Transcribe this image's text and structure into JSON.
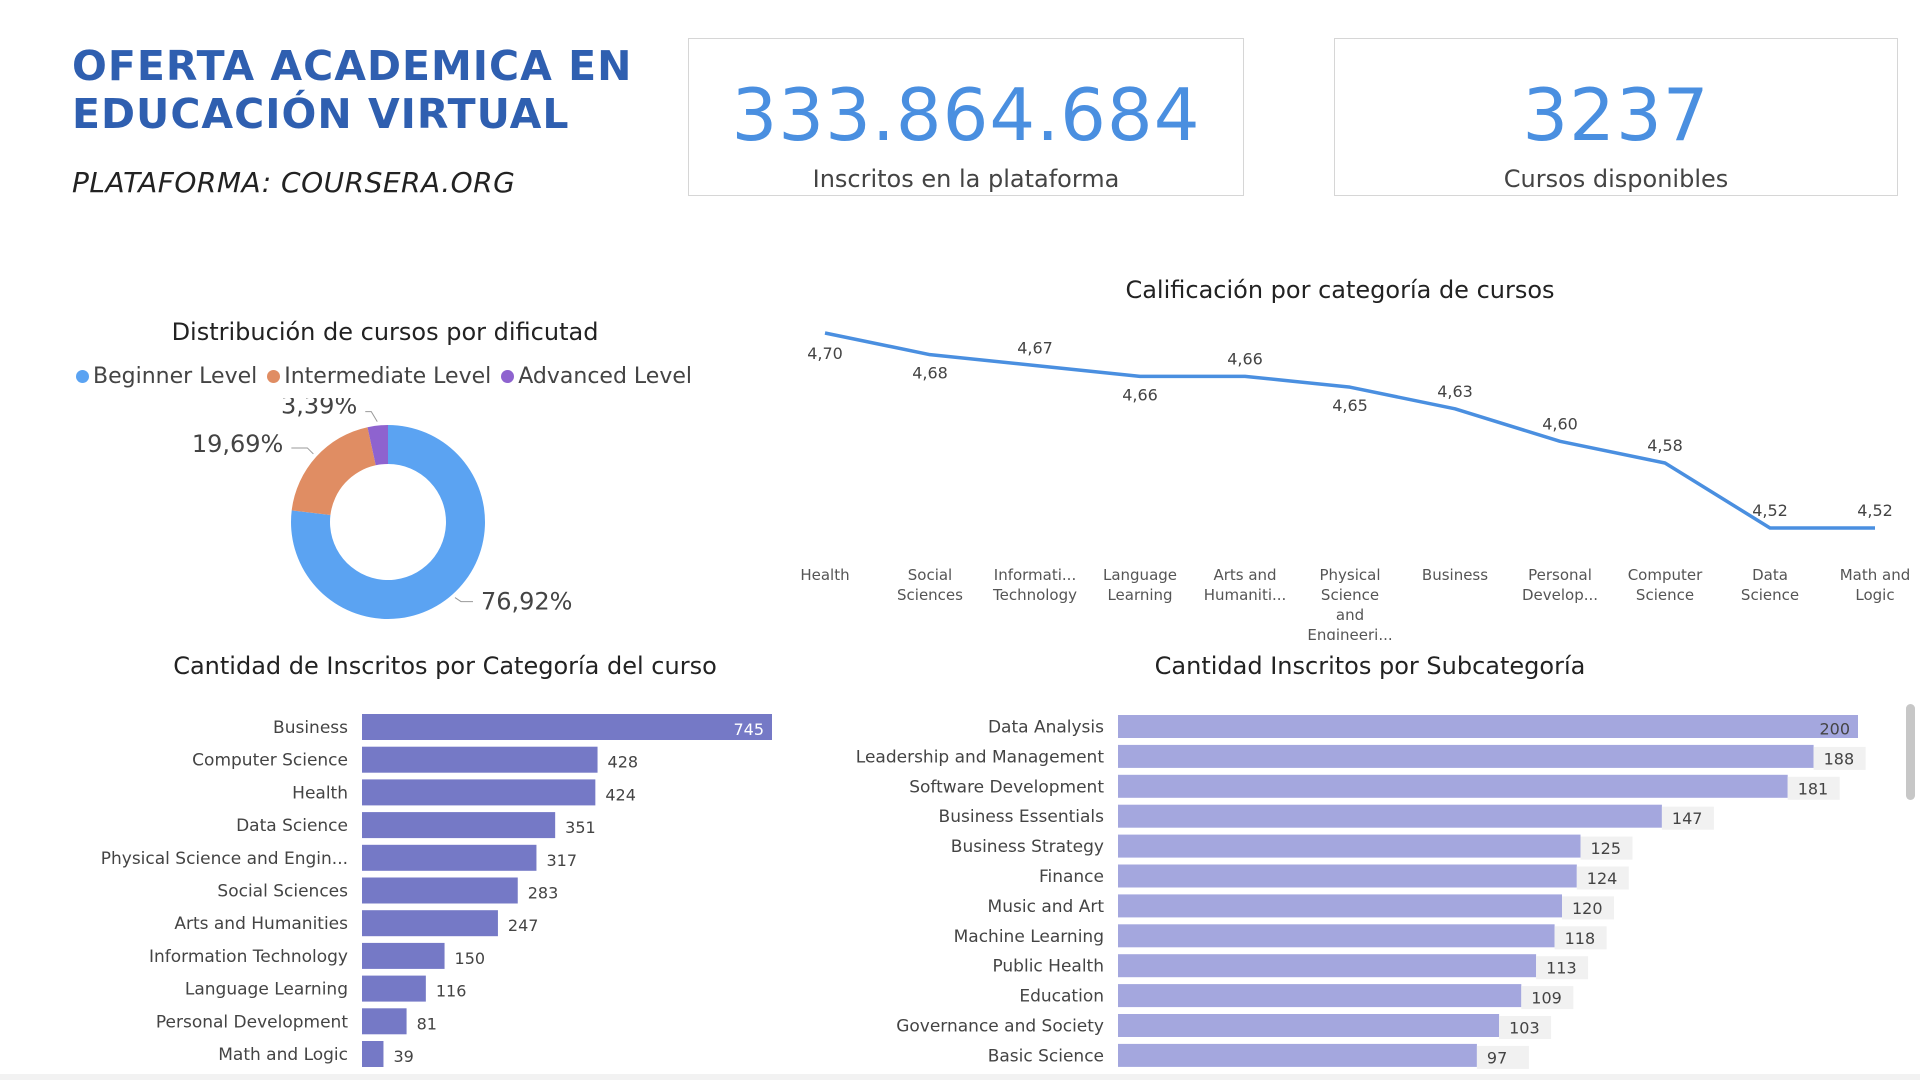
{
  "header": {
    "title_line1": "OFERTA ACADEMICA EN",
    "title_line2": "EDUCACIÓN VIRTUAL",
    "subtitle": "PLATAFORMA: COURSERA.ORG"
  },
  "kpis": [
    {
      "value": "333.864.684",
      "label": "Inscritos en la plataforma"
    },
    {
      "value": "3237",
      "label": "Cursos disponibles"
    }
  ],
  "colors": {
    "title": "#2f5fb0",
    "kpi": "#4a8fe0",
    "beginner": "#5ba3f2",
    "intermediate": "#e08d63",
    "advanced": "#8e63cf",
    "line": "#4a8fe0",
    "bar_category": "#7579c6",
    "bar_subcategory": "#a4a7de"
  },
  "chart_data": [
    {
      "type": "pie",
      "title": "Distribución de cursos por dificutad",
      "legend_placement": "top",
      "slices": [
        {
          "name": "Beginner Level",
          "value": 76.92,
          "label": "76,92%"
        },
        {
          "name": "Intermediate Level",
          "value": 19.69,
          "label": "19,69%"
        },
        {
          "name": "Advanced Level",
          "value": 3.39,
          "label": "3,39%"
        }
      ]
    },
    {
      "type": "line",
      "title": "Calificación por categoría de cursos",
      "categories": [
        "Health",
        "Social Sciences",
        "Informati... Technology",
        "Language Learning",
        "Arts and Humaniti...",
        "Physical Science and Engineeri...",
        "Business",
        "Personal Develop...",
        "Computer Science",
        "Data Science",
        "Math and Logic"
      ],
      "category_lines": [
        [
          "Health"
        ],
        [
          "Social",
          "Sciences"
        ],
        [
          "Informati...",
          "Technology"
        ],
        [
          "Language",
          "Learning"
        ],
        [
          "Arts and",
          "Humaniti..."
        ],
        [
          "Physical",
          "Science",
          "and",
          "Engineeri..."
        ],
        [
          "Business"
        ],
        [
          "Personal",
          "Develop..."
        ],
        [
          "Computer",
          "Science"
        ],
        [
          "Data",
          "Science"
        ],
        [
          "Math and",
          "Logic"
        ]
      ],
      "values": [
        4.7,
        4.68,
        4.67,
        4.66,
        4.66,
        4.65,
        4.63,
        4.6,
        4.58,
        4.52,
        4.52
      ],
      "labels": [
        "4,70",
        "4,68",
        "4,67",
        "4,66",
        "4,66",
        "4,65",
        "4,63",
        "4,60",
        "4,58",
        "4,52",
        "4,52"
      ],
      "ylim": [
        4.52,
        4.7
      ],
      "grid": false
    },
    {
      "type": "bar",
      "orientation": "horizontal",
      "title": "Cantidad de Inscritos por Categoría del curso",
      "categories": [
        "Business",
        "Computer Science",
        "Health",
        "Data Science",
        "Physical Science and Engin...",
        "Social Sciences",
        "Arts and Humanities",
        "Information Technology",
        "Language Learning",
        "Personal Development",
        "Math and Logic"
      ],
      "values": [
        745,
        428,
        424,
        351,
        317,
        283,
        247,
        150,
        116,
        81,
        39
      ],
      "xlim": [
        0,
        745
      ]
    },
    {
      "type": "bar",
      "orientation": "horizontal",
      "title": "Cantidad Inscritos por Subcategoría",
      "categories": [
        "Data Analysis",
        "Leadership and Management",
        "Software Development",
        "Business Essentials",
        "Business Strategy",
        "Finance",
        "Music and Art",
        "Machine Learning",
        "Public Health",
        "Education",
        "Governance and Society",
        "Basic Science"
      ],
      "values": [
        200,
        188,
        181,
        147,
        125,
        124,
        120,
        118,
        113,
        109,
        103,
        97
      ],
      "xlim": [
        0,
        200
      ]
    }
  ]
}
